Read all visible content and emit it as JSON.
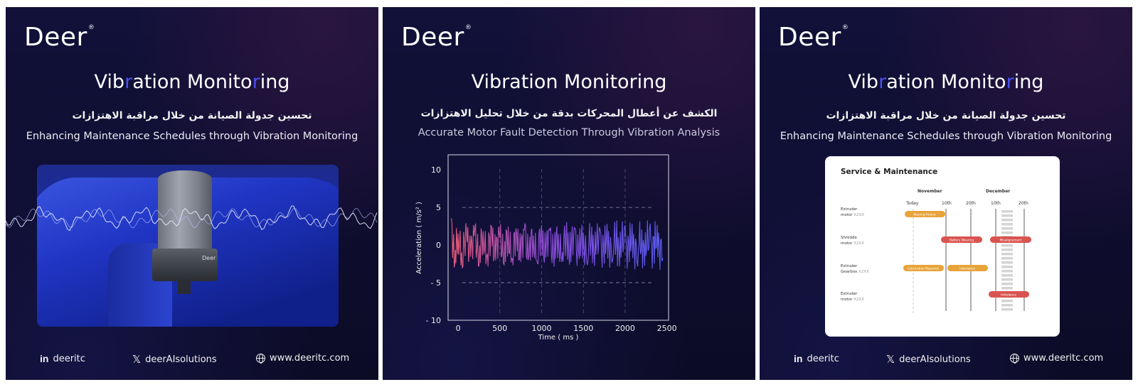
{
  "brand": {
    "name": "Deer",
    "mark": "®"
  },
  "panels": [
    {
      "title_parts": [
        "Vib",
        "r",
        "ation Monito",
        "r",
        "ing"
      ],
      "arabic": "تحسين جدولة الصيانة من خلال مراقبة الاهتزازات",
      "subtitle": "Enhancing Maintenance Schedules through Vibration Monitoring",
      "sensor_label": "Deer"
    },
    {
      "title": "Vibration Monitoring",
      "arabic": "الكشف عن أعطال المحركات بدقة من خلال تحليل الاهتزازات",
      "subtitle": "Accurate Motor Fault Detection Through Vibration Analysis"
    },
    {
      "title_parts": [
        "Vib",
        "r",
        "ation Monito",
        "r",
        "ing"
      ],
      "arabic": "تحسين جدولة الصيانة من خلال مراقبة الاهتزازات",
      "subtitle": "Enhancing Maintenance Schedules through Vibration Monitoring"
    }
  ],
  "footer": {
    "linkedin": {
      "icon": "linkedin-icon",
      "label": "in",
      "handle": "deeritc"
    },
    "x": {
      "icon": "x-logo-icon",
      "label": "𝕏",
      "handle": "deerAIsolutions"
    },
    "web": {
      "icon": "globe-icon",
      "url": "www.deeritc.com"
    }
  },
  "colors": {
    "accent": "#4a4ff2",
    "bg": "#0e0d2e",
    "amber": "#e8a43a",
    "red": "#d9534f"
  },
  "chart_data": {
    "type": "line",
    "xlabel": "Time ( ms )",
    "ylabel": "Acceleration ( m/s² )",
    "xlim": [
      -120,
      2520
    ],
    "ylim": [
      -10,
      12
    ],
    "xticks": [
      0,
      500,
      1000,
      1500,
      2000,
      2500
    ],
    "xtick_labels": [
      "0",
      "500",
      "1000",
      "1500",
      "2000",
      "2500"
    ],
    "yticks": [
      10,
      5,
      0,
      -5,
      -10
    ],
    "ytick_labels": [
      "10",
      "5",
      "0",
      "- 5",
      "- 10"
    ],
    "grid": true,
    "series": [
      {
        "x": [
          -80,
          -40,
          0,
          50,
          100,
          150,
          200,
          250,
          300,
          350,
          400,
          450,
          500,
          550,
          600,
          650,
          700,
          750,
          800,
          850,
          900,
          950,
          1000,
          1050,
          1100,
          1150,
          1200,
          1250,
          1300,
          1350,
          1400,
          1450,
          1500,
          1550,
          1600,
          1650,
          1700,
          1750,
          1800,
          1850,
          1900,
          1950,
          2000,
          2050,
          2100,
          2150,
          2200,
          2250,
          2300,
          2350,
          2400,
          2450
        ],
        "values": [
          3.5,
          -2.5,
          1.5,
          -3.0,
          2.0,
          -1.5,
          2.2,
          -2.8,
          1.8,
          -1.2,
          2.5,
          -2.0,
          1.0,
          -2.6,
          2.4,
          -1.8,
          1.6,
          -2.2,
          2.8,
          -1.4,
          1.2,
          -2.4,
          2.6,
          -1.6,
          2.0,
          -2.8,
          1.4,
          -1.0,
          3.0,
          -2.2,
          2.2,
          -1.8,
          1.6,
          -2.6,
          2.4,
          -1.2,
          2.0,
          -2.4,
          1.8,
          -2.0,
          3.2,
          -1.6,
          2.6,
          -2.2,
          1.4,
          -2.8,
          2.0,
          -1.4,
          2.8,
          -2.4,
          1.6,
          -1.8
        ]
      }
    ]
  },
  "schedule": {
    "title": "Service & Maintenance",
    "months": [
      "November",
      "December"
    ],
    "columns": [
      "Today",
      "10th",
      "20th",
      "10th",
      "20th"
    ],
    "rows": [
      {
        "name": "Estruder",
        "sub": "motor",
        "code": "X2XX"
      },
      {
        "name": "Shredde",
        "sub": "motor",
        "code": "X2XX"
      },
      {
        "name": "Estruder",
        "sub": "Gearbox",
        "code": "X2XX"
      },
      {
        "name": "Estruder",
        "sub": "motor",
        "code": "X2XX"
      }
    ],
    "tasks": [
      "Bearing Failure",
      "Battery Wearing",
      "Misalignement",
      "Lubrication Required",
      "Imbalance",
      "Imbalance"
    ]
  }
}
